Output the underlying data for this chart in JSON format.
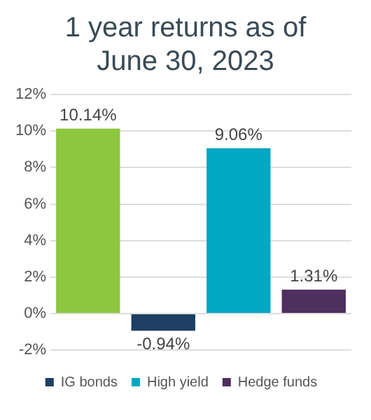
{
  "chart_data": {
    "type": "bar",
    "title": "1 year returns as of June 30, 2023",
    "categories": [
      null
    ],
    "series": [
      {
        "color": "#8dc63f",
        "values": [
          10.14
        ],
        "value_labels": [
          "10.14%"
        ]
      },
      {
        "name": "IG bonds",
        "color": "#1d3f63",
        "values": [
          -0.94
        ],
        "value_labels": [
          "-0.94%"
        ]
      },
      {
        "name": "High yield",
        "color": "#00a7c4",
        "values": [
          9.06
        ],
        "value_labels": [
          "9.06%"
        ]
      },
      {
        "name": "Hedge funds",
        "color": "#4e2f5e",
        "values": [
          1.31
        ],
        "value_labels": [
          "1.31%"
        ]
      }
    ],
    "ylim": [
      -2,
      12
    ],
    "yticks": [
      {
        "value": -2,
        "label": "-2%"
      },
      {
        "value": 0,
        "label": "0%"
      },
      {
        "value": 2,
        "label": "2%"
      },
      {
        "value": 4,
        "label": "4%"
      },
      {
        "value": 6,
        "label": "6%"
      },
      {
        "value": 8,
        "label": "8%"
      },
      {
        "value": 10,
        "label": "10%"
      },
      {
        "value": 12,
        "label": "12%"
      }
    ],
    "grid": "y",
    "legend": "bottom"
  }
}
